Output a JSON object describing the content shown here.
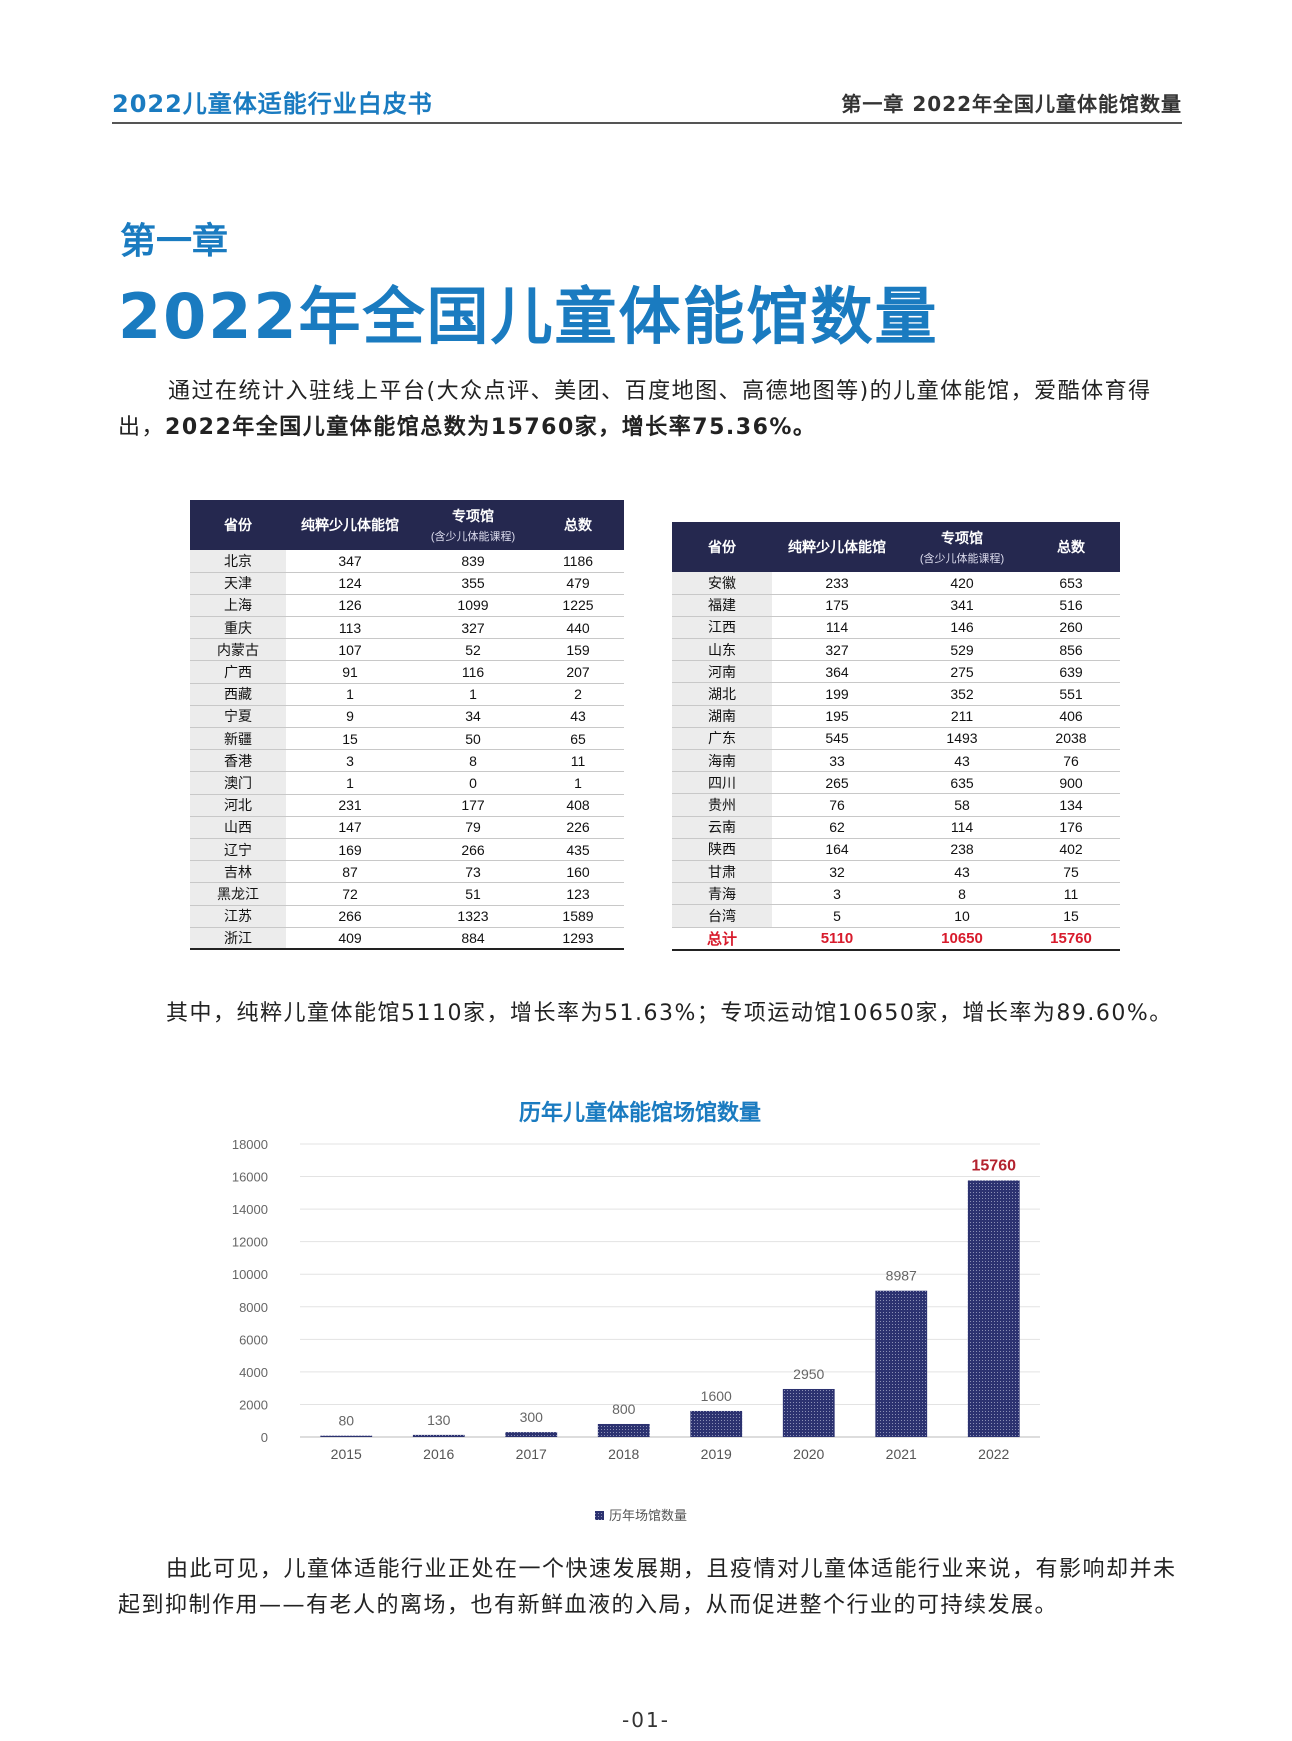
{
  "header": {
    "left": "2022儿童体适能行业白皮书",
    "right": "第一章  2022年全国儿童体能馆数量"
  },
  "chapter": {
    "label": "第一章",
    "title": "2022年全国儿童体能馆数量"
  },
  "para1": {
    "text": "通过在统计入驻线上平台(大众点评、美团、百度地图、高德地图等)的儿童体能馆，爱酷体育得出，",
    "bold": "2022年全国儿童体能馆总数为15760家，增长率75.36%。"
  },
  "table_headers": {
    "province": "省份",
    "pure": "纯粹少儿体能馆",
    "special": "专项馆",
    "special_note": "(含少儿体能课程)",
    "total": "总数"
  },
  "table_left": [
    {
      "p": "北京",
      "a": "347",
      "b": "839",
      "t": "1186"
    },
    {
      "p": "天津",
      "a": "124",
      "b": "355",
      "t": "479"
    },
    {
      "p": "上海",
      "a": "126",
      "b": "1099",
      "t": "1225"
    },
    {
      "p": "重庆",
      "a": "113",
      "b": "327",
      "t": "440"
    },
    {
      "p": "内蒙古",
      "a": "107",
      "b": "52",
      "t": "159"
    },
    {
      "p": "广西",
      "a": "91",
      "b": "116",
      "t": "207"
    },
    {
      "p": "西藏",
      "a": "1",
      "b": "1",
      "t": "2"
    },
    {
      "p": "宁夏",
      "a": "9",
      "b": "34",
      "t": "43"
    },
    {
      "p": "新疆",
      "a": "15",
      "b": "50",
      "t": "65"
    },
    {
      "p": "香港",
      "a": "3",
      "b": "8",
      "t": "11"
    },
    {
      "p": "澳门",
      "a": "1",
      "b": "0",
      "t": "1"
    },
    {
      "p": "河北",
      "a": "231",
      "b": "177",
      "t": "408"
    },
    {
      "p": "山西",
      "a": "147",
      "b": "79",
      "t": "226"
    },
    {
      "p": "辽宁",
      "a": "169",
      "b": "266",
      "t": "435"
    },
    {
      "p": "吉林",
      "a": "87",
      "b": "73",
      "t": "160"
    },
    {
      "p": "黑龙江",
      "a": "72",
      "b": "51",
      "t": "123"
    },
    {
      "p": "江苏",
      "a": "266",
      "b": "1323",
      "t": "1589"
    },
    {
      "p": "浙江",
      "a": "409",
      "b": "884",
      "t": "1293"
    }
  ],
  "table_right": [
    {
      "p": "安徽",
      "a": "233",
      "b": "420",
      "t": "653"
    },
    {
      "p": "福建",
      "a": "175",
      "b": "341",
      "t": "516"
    },
    {
      "p": "江西",
      "a": "114",
      "b": "146",
      "t": "260"
    },
    {
      "p": "山东",
      "a": "327",
      "b": "529",
      "t": "856"
    },
    {
      "p": "河南",
      "a": "364",
      "b": "275",
      "t": "639"
    },
    {
      "p": "湖北",
      "a": "199",
      "b": "352",
      "t": "551"
    },
    {
      "p": "湖南",
      "a": "195",
      "b": "211",
      "t": "406"
    },
    {
      "p": "广东",
      "a": "545",
      "b": "1493",
      "t": "2038"
    },
    {
      "p": "海南",
      "a": "33",
      "b": "43",
      "t": "76"
    },
    {
      "p": "四川",
      "a": "265",
      "b": "635",
      "t": "900"
    },
    {
      "p": "贵州",
      "a": "76",
      "b": "58",
      "t": "134"
    },
    {
      "p": "云南",
      "a": "62",
      "b": "114",
      "t": "176"
    },
    {
      "p": "陕西",
      "a": "164",
      "b": "238",
      "t": "402"
    },
    {
      "p": "甘肃",
      "a": "32",
      "b": "43",
      "t": "75"
    },
    {
      "p": "青海",
      "a": "3",
      "b": "8",
      "t": "11"
    },
    {
      "p": "台湾",
      "a": "5",
      "b": "10",
      "t": "15"
    }
  ],
  "table_total": {
    "p": "总计",
    "a": "5110",
    "b": "10650",
    "t": "15760"
  },
  "para2": "其中，纯粹儿童体能馆5110家，增长率为51.63%；专项运动馆10650家，增长率为89.60%。",
  "chart_data": {
    "type": "bar",
    "title": "历年儿童体能馆场馆数量",
    "categories": [
      "2015",
      "2016",
      "2017",
      "2018",
      "2019",
      "2020",
      "2021",
      "2022"
    ],
    "series": [
      {
        "name": "历年场馆数量",
        "values": [
          80,
          130,
          300,
          800,
          1600,
          2950,
          8987,
          15760
        ]
      }
    ],
    "ylim": [
      0,
      18000
    ],
    "yticks": [
      0,
      2000,
      4000,
      6000,
      8000,
      10000,
      12000,
      14000,
      16000,
      18000
    ],
    "highlight_index": 7,
    "bar_color": "#2c3270",
    "highlight_label_color": "#b3222e",
    "label_color": "#666666",
    "legend": "bottom",
    "xlabel": "",
    "ylabel": ""
  },
  "para3": "由此可见，儿童体适能行业正处在一个快速发展期，且疫情对儿童体适能行业来说，有影响却并未起到抑制作用——有老人的离场，也有新鲜血液的入局，从而促进整个行业的可持续发展。",
  "page_number": "-01-"
}
